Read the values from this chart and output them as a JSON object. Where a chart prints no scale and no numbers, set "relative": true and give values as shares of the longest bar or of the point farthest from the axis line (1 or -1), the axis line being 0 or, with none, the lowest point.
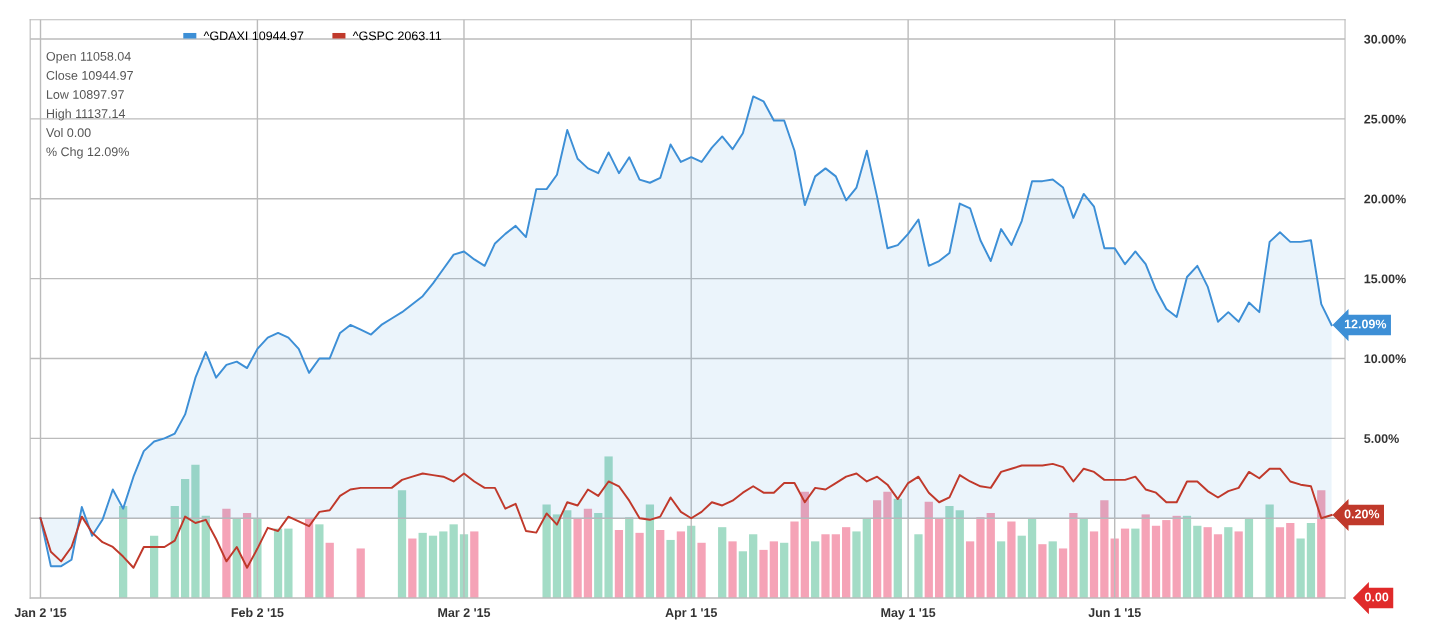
{
  "chart_data": [
    {
      "type": "line",
      "categories": [
        "Jan 2 '15",
        null,
        null,
        null,
        null,
        null,
        null,
        null,
        null,
        null,
        null,
        null,
        null,
        null,
        null,
        null,
        null,
        null,
        null,
        null,
        null,
        "Feb 2 '15",
        null,
        null,
        null,
        null,
        null,
        null,
        null,
        null,
        null,
        null,
        null,
        null,
        null,
        null,
        null,
        null,
        null,
        null,
        null,
        "Mar 2 '15",
        null,
        null,
        null,
        null,
        null,
        null,
        null,
        null,
        null,
        null,
        null,
        null,
        null,
        null,
        null,
        null,
        null,
        null,
        null,
        null,
        null,
        "Apr 1 '15",
        null,
        null,
        null,
        null,
        null,
        null,
        null,
        null,
        null,
        null,
        null,
        null,
        null,
        null,
        null,
        null,
        null,
        null,
        null,
        null,
        "May 1 '15",
        null,
        null,
        null,
        null,
        null,
        null,
        null,
        null,
        null,
        null,
        null,
        null,
        null,
        null,
        null,
        null,
        null,
        null,
        null,
        "Jun 1 '15",
        null,
        null,
        null,
        null,
        null,
        null,
        null,
        null,
        null,
        null,
        null,
        null,
        null,
        null,
        null,
        null,
        null,
        null,
        null,
        null,
        null
      ],
      "series": [
        {
          "name": "^GDAXI 10944.97",
          "type": "area",
          "color": "#3d8fd6",
          "value_labels": [
            null,
            null,
            null,
            null,
            null,
            null,
            null,
            null,
            null,
            null,
            null,
            null,
            null,
            null,
            null,
            null,
            null,
            null,
            null,
            null,
            null,
            null,
            null,
            null,
            null,
            null,
            null,
            null,
            null,
            null,
            null,
            null,
            null,
            null,
            null,
            null,
            null,
            null,
            null,
            null,
            null,
            null,
            null,
            null,
            null,
            null,
            null,
            null,
            null,
            null,
            null,
            null,
            null,
            null,
            null,
            null,
            null,
            null,
            null,
            null,
            null,
            null,
            null,
            null,
            null,
            null,
            null,
            null,
            null,
            null,
            null,
            null,
            null,
            null,
            null,
            null,
            null,
            null,
            null,
            null,
            null,
            null,
            null,
            null,
            null,
            null,
            null,
            null,
            null,
            null,
            null,
            null,
            null,
            null,
            null,
            null,
            null,
            null,
            null,
            null,
            null,
            null,
            null,
            null,
            null,
            null,
            null,
            null,
            null,
            null,
            null,
            null,
            null,
            null,
            null,
            null,
            null,
            null,
            null,
            null,
            null,
            null,
            null,
            null,
            null,
            "12.09%"
          ],
          "values": [
            0,
            -3.0,
            -3.0,
            -2.6,
            0.7,
            -1.1,
            -0.1,
            1.8,
            0.6,
            2.6,
            4.2,
            4.8,
            5.0,
            5.3,
            6.5,
            8.8,
            10.4,
            8.8,
            9.6,
            9.8,
            9.4,
            10.6,
            11.3,
            11.6,
            11.3,
            10.6,
            9.1,
            10.0,
            10.0,
            11.6,
            12.1,
            11.8,
            11.5,
            12.1,
            12.5,
            12.9,
            13.4,
            13.9,
            14.7,
            15.6,
            16.5,
            16.7,
            16.2,
            15.8,
            17.2,
            17.8,
            18.3,
            17.6,
            20.6,
            20.6,
            21.5,
            24.3,
            22.5,
            21.9,
            21.6,
            22.9,
            21.6,
            22.6,
            21.2,
            21.0,
            21.3,
            23.4,
            22.3,
            22.6,
            22.3,
            23.2,
            23.9,
            23.1,
            24.1,
            26.4,
            26.1,
            24.9,
            24.9,
            23.0,
            19.6,
            21.4,
            21.9,
            21.4,
            19.9,
            20.7,
            23.0,
            20.1,
            16.9,
            17.1,
            17.8,
            18.7,
            15.8,
            16.1,
            16.6,
            19.7,
            19.4,
            17.4,
            16.1,
            18.1,
            17.1,
            18.6,
            21.1,
            21.1,
            21.2,
            20.7,
            18.8,
            20.3,
            19.5,
            16.9,
            16.9,
            15.9,
            16.7,
            15.9,
            14.3,
            13.1,
            12.6,
            15.1,
            15.8,
            14.5,
            12.3,
            12.9,
            12.3,
            13.5,
            12.9,
            17.3,
            17.9,
            17.3,
            17.3,
            17.4,
            13.4,
            12.09
          ]
        },
        {
          "name": "^GSPC 2063.11",
          "type": "line",
          "color": "#c0392b",
          "value_labels": [
            null,
            null,
            null,
            null,
            null,
            null,
            null,
            null,
            null,
            null,
            null,
            null,
            null,
            null,
            null,
            null,
            null,
            null,
            null,
            null,
            null,
            null,
            null,
            null,
            null,
            null,
            null,
            null,
            null,
            null,
            null,
            null,
            null,
            null,
            null,
            null,
            null,
            null,
            null,
            null,
            null,
            null,
            null,
            null,
            null,
            null,
            null,
            null,
            null,
            null,
            null,
            null,
            null,
            null,
            null,
            null,
            null,
            null,
            null,
            null,
            null,
            null,
            null,
            null,
            null,
            null,
            null,
            null,
            null,
            null,
            null,
            null,
            null,
            null,
            null,
            null,
            null,
            null,
            null,
            null,
            null,
            null,
            null,
            null,
            null,
            null,
            null,
            null,
            null,
            null,
            null,
            null,
            null,
            null,
            null,
            null,
            null,
            null,
            null,
            null,
            null,
            null,
            null,
            null,
            null,
            null,
            null,
            null,
            null,
            null,
            null,
            null,
            null,
            null,
            null,
            null,
            null,
            null,
            null,
            null,
            null,
            null,
            null,
            null,
            null,
            "0.20%"
          ],
          "values": [
            0,
            -2.1,
            -2.7,
            -1.8,
            0.1,
            -0.9,
            -1.5,
            -1.8,
            -2.4,
            -3.1,
            -1.8,
            -1.8,
            -1.8,
            -1.4,
            0.1,
            -0.3,
            -0.1,
            -1.3,
            -2.7,
            -1.8,
            -3.1,
            -1.9,
            -0.6,
            -0.8,
            0.1,
            -0.2,
            -0.5,
            0.4,
            0.5,
            1.4,
            1.8,
            1.9,
            1.9,
            1.9,
            1.9,
            2.4,
            2.6,
            2.8,
            2.7,
            2.6,
            2.3,
            2.8,
            2.3,
            1.9,
            1.9,
            0.6,
            0.9,
            -0.8,
            -0.9,
            0.3,
            -0.4,
            1.0,
            0.8,
            1.8,
            1.4,
            2.3,
            2.0,
            1.1,
            0.0,
            -0.1,
            0.1,
            1.3,
            0.4,
            0.0,
            0.4,
            1.0,
            0.8,
            1.1,
            1.6,
            2.0,
            1.6,
            1.6,
            2.2,
            2.2,
            1.0,
            1.9,
            1.8,
            2.2,
            2.6,
            2.8,
            2.3,
            2.6,
            2.1,
            1.2,
            2.2,
            2.6,
            1.6,
            1.0,
            1.3,
            2.7,
            2.3,
            2.0,
            1.9,
            2.9,
            3.1,
            3.3,
            3.3,
            3.3,
            3.4,
            3.2,
            2.3,
            3.1,
            2.9,
            2.4,
            2.4,
            2.4,
            2.6,
            1.8,
            1.6,
            1.0,
            1.0,
            2.3,
            2.3,
            1.7,
            1.3,
            1.7,
            1.9,
            2.9,
            2.5,
            3.1,
            3.1,
            2.3,
            2.1,
            2.0,
            0.0,
            0.2
          ]
        }
      ],
      "ylim": [
        -5,
        31.2
      ],
      "yticks": [
        {
          "value": -5,
          "label": null
        },
        {
          "value": 0,
          "label": null
        },
        {
          "value": 5,
          "label": "5.00%"
        },
        {
          "value": 10,
          "label": "10.00%"
        },
        {
          "value": 15,
          "label": "15.00%"
        },
        {
          "value": 20,
          "label": "20.00%"
        },
        {
          "value": 25,
          "label": "25.00%"
        },
        {
          "value": 30,
          "label": "30.00%"
        }
      ],
      "grid": true,
      "legend": "top left",
      "marker": "none",
      "line_style": "solid",
      "annotations": [
        "Open 11058.04",
        "Close 10944.97",
        "Low 10897.97",
        "High 11137.14",
        "Vol 0.00",
        "% Chg 12.09%"
      ]
    },
    {
      "type": "bar",
      "relative": true,
      "categories": [
        null,
        null,
        null,
        null,
        null,
        null,
        null,
        null,
        null,
        null,
        null,
        null,
        null,
        null,
        null,
        null,
        null,
        null,
        null,
        null,
        null,
        null,
        null,
        null,
        null,
        null,
        null,
        null,
        null,
        null,
        null,
        null,
        null,
        null,
        null,
        null,
        null,
        null,
        null,
        null,
        null,
        null,
        null,
        null,
        null,
        null,
        null,
        null,
        null,
        null,
        null,
        null,
        null,
        null,
        null,
        null,
        null,
        null,
        null,
        null,
        null,
        null,
        null,
        null,
        null,
        null,
        null,
        null,
        null,
        null,
        null,
        null,
        null,
        null,
        null,
        null,
        null,
        null,
        null,
        null,
        null,
        null,
        null,
        null,
        null,
        null,
        null,
        null,
        null,
        null,
        null,
        null,
        null,
        null,
        null,
        null,
        null,
        null,
        null,
        null,
        null,
        null,
        null,
        null,
        null,
        null,
        null,
        null,
        null,
        null,
        null,
        null,
        null,
        null,
        null,
        null,
        null,
        null,
        null,
        null,
        null,
        null,
        null,
        null,
        null,
        null
      ],
      "values": [
        null,
        null,
        null,
        null,
        null,
        null,
        null,
        null,
        0.65,
        null,
        null,
        0.44,
        null,
        0.65,
        0.84,
        0.94,
        0.58,
        null,
        0.63,
        0.56,
        0.6,
        0.56,
        null,
        0.49,
        0.49,
        null,
        0.56,
        0.52,
        0.39,
        null,
        null,
        0.35,
        null,
        null,
        null,
        0.76,
        0.42,
        0.46,
        0.44,
        0.47,
        0.52,
        0.45,
        0.47,
        null,
        null,
        null,
        null,
        null,
        null,
        0.66,
        0.59,
        0.62,
        0.56,
        0.63,
        0.6,
        1,
        0.48,
        0.57,
        0.46,
        0.66,
        0.48,
        0.41,
        0.47,
        0.51,
        0.39,
        null,
        0.5,
        0.4,
        0.33,
        0.45,
        0.34,
        0.4,
        0.39,
        0.54,
        0.75,
        0.4,
        0.45,
        0.45,
        0.5,
        0.47,
        0.56,
        0.69,
        0.75,
        0.7,
        null,
        0.45,
        0.68,
        0.56,
        0.65,
        0.62,
        0.4,
        0.57,
        0.6,
        0.4,
        0.54,
        0.44,
        0.56,
        0.38,
        0.4,
        0.35,
        0.6,
        0.56,
        0.47,
        0.69,
        0.42,
        0.49,
        0.49,
        0.59,
        0.51,
        0.55,
        0.58,
        0.58,
        0.51,
        0.5,
        0.45,
        0.5,
        0.47,
        0.56,
        null,
        0.66,
        0.5,
        0.53,
        0.42,
        0.53,
        0.76,
        null
      ],
      "colors": [
        null,
        null,
        null,
        null,
        null,
        null,
        null,
        null,
        "#a3dcc6",
        null,
        null,
        "#a3dcc6",
        null,
        "#a3dcc6",
        "#a3dcc6",
        "#a3dcc6",
        "#a3dcc6",
        null,
        "#f5a3b7",
        "#a3dcc6",
        "#f5a3b7",
        "#a3dcc6",
        null,
        "#a3dcc6",
        "#a3dcc6",
        null,
        "#f5a3b7",
        "#a3dcc6",
        "#f5a3b7",
        null,
        null,
        "#f5a3b7",
        null,
        null,
        null,
        "#a3dcc6",
        "#f5a3b7",
        "#a3dcc6",
        "#a3dcc6",
        "#a3dcc6",
        "#a3dcc6",
        "#a3dcc6",
        "#f5a3b7",
        null,
        null,
        null,
        null,
        null,
        null,
        "#a3dcc6",
        "#a3dcc6",
        "#a3dcc6",
        "#f5a3b7",
        "#f5a3b7",
        "#a3dcc6",
        "#a3dcc6",
        "#f5a3b7",
        "#a3dcc6",
        "#f5a3b7",
        "#a3dcc6",
        "#f5a3b7",
        "#a3dcc6",
        "#f5a3b7",
        "#a3dcc6",
        "#f5a3b7",
        null,
        "#a3dcc6",
        "#f5a3b7",
        "#a3dcc6",
        "#a3dcc6",
        "#f5a3b7",
        "#f5a3b7",
        "#a3dcc6",
        "#f5a3b7",
        "#f5a3b7",
        "#a3dcc6",
        "#f5a3b7",
        "#f5a3b7",
        "#f5a3b7",
        "#a3dcc6",
        "#a3dcc6",
        "#f5a3b7",
        "#f5a3b7",
        "#a3dcc6",
        null,
        "#a3dcc6",
        "#f5a3b7",
        "#f5a3b7",
        "#a3dcc6",
        "#a3dcc6",
        "#f5a3b7",
        "#f5a3b7",
        "#f5a3b7",
        "#a3dcc6",
        "#f5a3b7",
        "#a3dcc6",
        "#a3dcc6",
        "#f5a3b7",
        "#a3dcc6",
        "#f5a3b7",
        "#f5a3b7",
        "#a3dcc6",
        "#f5a3b7",
        "#f5a3b7",
        "#f5a3b7",
        "#f5a3b7",
        "#a3dcc6",
        "#f5a3b7",
        "#f5a3b7",
        "#f5a3b7",
        "#f5a3b7",
        "#a3dcc6",
        "#a3dcc6",
        "#f5a3b7",
        "#f5a3b7",
        "#a3dcc6",
        "#f5a3b7",
        "#a3dcc6",
        null,
        "#a3dcc6",
        "#f5a3b7",
        "#f5a3b7",
        "#a3dcc6",
        "#a3dcc6",
        "#f5a3b7",
        null
      ],
      "annotations": [
        "0.00"
      ]
    }
  ]
}
